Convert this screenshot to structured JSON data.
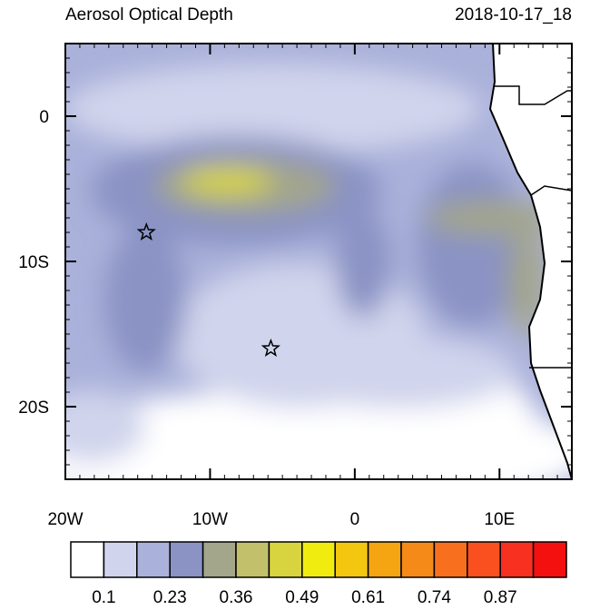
{
  "header": {
    "title": "Aerosol Optical Depth",
    "date": "2018-10-17_18"
  },
  "map": {
    "xlim": [
      -20,
      15
    ],
    "ylim": [
      -25,
      5
    ],
    "x_ticks": [
      {
        "value": -20,
        "label": "20W"
      },
      {
        "value": -10,
        "label": "10W"
      },
      {
        "value": 0,
        "label": "0"
      },
      {
        "value": 10,
        "label": "10E"
      }
    ],
    "y_ticks": [
      {
        "value": 0,
        "label": "0"
      },
      {
        "value": -10,
        "label": "10S"
      },
      {
        "value": -20,
        "label": "20S"
      }
    ],
    "markers": [
      {
        "lon": -14.4,
        "lat": -8
      },
      {
        "lon": -5.8,
        "lat": -16
      }
    ]
  },
  "colorbar": {
    "colors": [
      "#ffffff",
      "#d0d4ec",
      "#aab1da",
      "#8a93c4",
      "#a3a68a",
      "#c2c06a",
      "#d8d440",
      "#f0ec10",
      "#f3c610",
      "#f5a412",
      "#f68a18",
      "#f8701e",
      "#fa5020",
      "#f83020",
      "#f51010"
    ],
    "labels": [
      {
        "value": 0.1,
        "label": "0.1"
      },
      {
        "value": 0.23,
        "label": "0.23"
      },
      {
        "value": 0.36,
        "label": "0.36"
      },
      {
        "value": 0.49,
        "label": "0.49"
      },
      {
        "value": 0.61,
        "label": "0.61"
      },
      {
        "value": 0.74,
        "label": "0.74"
      },
      {
        "value": 0.87,
        "label": "0.87"
      }
    ]
  }
}
